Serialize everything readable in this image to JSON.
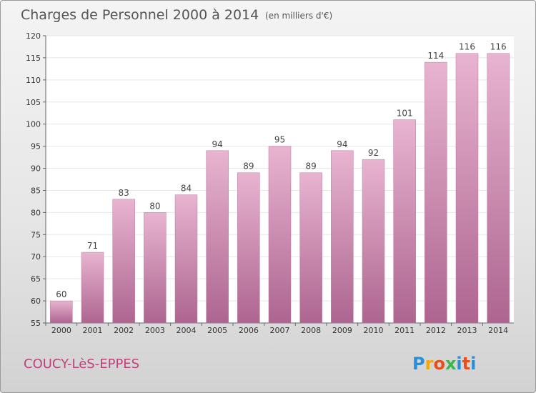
{
  "header": {
    "title": "Charges de Personnel 2000 à 2014",
    "subtitle": "(en milliers d'€)"
  },
  "footer": {
    "place": "COUCY-LèS-EPPES",
    "brand": {
      "letters": [
        "P",
        "r",
        "o",
        "x",
        "i",
        "t",
        "i"
      ],
      "colors": [
        "#2a8fd6",
        "#f2a900",
        "#e94e1b",
        "#3cb54a",
        "#2a8fd6",
        "#e94e1b",
        "#2a8fd6"
      ]
    }
  },
  "colors": {
    "bar_top": "#e8b4d0",
    "bar_bottom": "#ad6590",
    "grid": "#e7e7e7",
    "plot_bg": "#ffffff"
  },
  "chart_data": {
    "type": "bar",
    "title": "Charges de Personnel 2000 à 2014",
    "subtitle": "(en milliers d'€)",
    "categories": [
      "2000",
      "2001",
      "2002",
      "2003",
      "2004",
      "2005",
      "2006",
      "2007",
      "2008",
      "2009",
      "2010",
      "2011",
      "2012",
      "2013",
      "2014"
    ],
    "values": [
      60,
      71,
      83,
      80,
      84,
      94,
      89,
      95,
      89,
      94,
      92,
      101,
      114,
      116,
      116
    ],
    "xlabel": "",
    "ylabel": "",
    "ylim": [
      55,
      120
    ],
    "yticks": [
      55,
      60,
      65,
      70,
      75,
      80,
      85,
      90,
      95,
      100,
      105,
      110,
      115,
      120
    ],
    "grid": true,
    "legend": "none"
  }
}
